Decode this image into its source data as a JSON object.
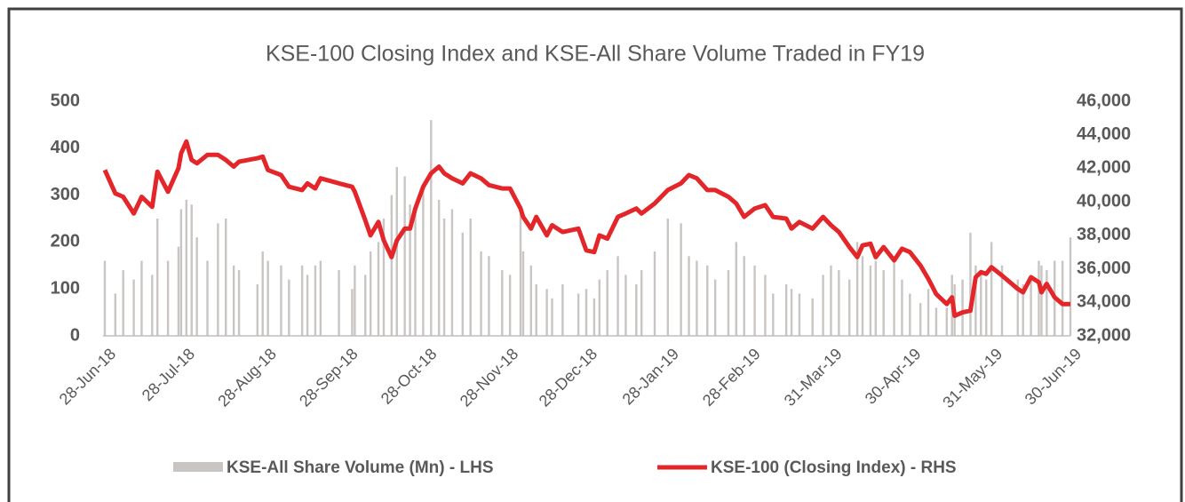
{
  "chart_data": {
    "type": "bar-line",
    "title": "KSE-100 Closing Index and KSE-All Share Volume Traded in FY19",
    "x": [
      "2018-06-28",
      "2018-07-02",
      "2018-07-05",
      "2018-07-09",
      "2018-07-12",
      "2018-07-16",
      "2018-07-18",
      "2018-07-22",
      "2018-07-26",
      "2018-07-27",
      "2018-07-29",
      "2018-07-31",
      "2018-08-02",
      "2018-08-06",
      "2018-08-10",
      "2018-08-13",
      "2018-08-16",
      "2018-08-18",
      "2018-08-25",
      "2018-08-27",
      "2018-08-29",
      "2018-09-03",
      "2018-09-06",
      "2018-09-11",
      "2018-09-13",
      "2018-09-16",
      "2018-09-18",
      "2018-09-25",
      "2018-09-30",
      "2018-10-01",
      "2018-10-05",
      "2018-10-07",
      "2018-10-10",
      "2018-10-12",
      "2018-10-15",
      "2018-10-17",
      "2018-10-20",
      "2018-10-22",
      "2018-10-24",
      "2018-10-27",
      "2018-10-30",
      "2018-11-02",
      "2018-11-04",
      "2018-11-07",
      "2018-11-11",
      "2018-11-14",
      "2018-11-18",
      "2018-11-21",
      "2018-11-26",
      "2018-11-29",
      "2018-12-03",
      "2018-12-04",
      "2018-12-07",
      "2018-12-09",
      "2018-12-13",
      "2018-12-15",
      "2018-12-19",
      "2018-12-25",
      "2018-12-28",
      "2018-12-31",
      "2019-01-02",
      "2019-01-05",
      "2019-01-09",
      "2019-01-12",
      "2019-01-16",
      "2019-01-18",
      "2019-01-23",
      "2019-01-28",
      "2019-02-02",
      "2019-02-05",
      "2019-02-08",
      "2019-02-12",
      "2019-02-15",
      "2019-02-20",
      "2019-02-23",
      "2019-02-26",
      "2019-03-02",
      "2019-03-06",
      "2019-03-09",
      "2019-03-14",
      "2019-03-16",
      "2019-03-19",
      "2019-03-24",
      "2019-03-28",
      "2019-03-31",
      "2019-04-03",
      "2019-04-07",
      "2019-04-10",
      "2019-04-12",
      "2019-04-15",
      "2019-04-17",
      "2019-04-20",
      "2019-04-24",
      "2019-04-27",
      "2019-04-30",
      "2019-05-04",
      "2019-05-07",
      "2019-05-10",
      "2019-05-14",
      "2019-05-16",
      "2019-05-17",
      "2019-05-20",
      "2019-05-23",
      "2019-05-25",
      "2019-05-27",
      "2019-05-29",
      "2019-05-31",
      "2019-06-04",
      "2019-06-10",
      "2019-06-12",
      "2019-06-15",
      "2019-06-18",
      "2019-06-19",
      "2019-06-21",
      "2019-06-24",
      "2019-06-27",
      "2019-06-30"
    ],
    "series": [
      {
        "name": "KSE-All Share Volume (Mn) - LHS",
        "type": "bar",
        "axis": "y",
        "color": "#c9c5c2",
        "values": [
          160,
          90,
          140,
          120,
          160,
          130,
          250,
          160,
          190,
          270,
          290,
          280,
          210,
          160,
          240,
          250,
          150,
          140,
          110,
          180,
          160,
          150,
          120,
          150,
          130,
          150,
          160,
          140,
          100,
          150,
          130,
          180,
          200,
          250,
          300,
          360,
          340,
          280,
          260,
          320,
          460,
          290,
          250,
          270,
          220,
          250,
          180,
          170,
          140,
          130,
          260,
          180,
          150,
          110,
          100,
          80,
          110,
          90,
          100,
          80,
          120,
          140,
          170,
          130,
          110,
          140,
          180,
          250,
          240,
          170,
          160,
          150,
          120,
          140,
          200,
          170,
          150,
          130,
          90,
          110,
          100,
          90,
          80,
          130,
          150,
          140,
          120,
          200,
          170,
          150,
          160,
          140,
          170,
          120,
          90,
          70,
          100,
          60,
          60,
          130,
          110,
          120,
          220,
          150,
          130,
          120,
          200,
          150,
          120,
          110,
          130,
          160,
          150,
          140,
          160,
          160,
          210
        ]
      },
      {
        "name": "KSE-100 (Closing Index) - RHS",
        "type": "line",
        "axis": "y2",
        "color": "#e3262a",
        "values": [
          41900,
          40500,
          40300,
          39300,
          40300,
          39700,
          41800,
          40600,
          42000,
          42900,
          43600,
          42500,
          42300,
          42800,
          42800,
          42500,
          42100,
          42400,
          42600,
          42700,
          41900,
          41600,
          40900,
          40700,
          41100,
          40800,
          41400,
          41100,
          40900,
          40600,
          38900,
          38000,
          38800,
          37700,
          36700,
          37700,
          38400,
          38400,
          39600,
          40900,
          41700,
          42100,
          41700,
          41400,
          41100,
          41700,
          41400,
          41000,
          40800,
          40800,
          39600,
          39100,
          38400,
          39100,
          38000,
          38600,
          38200,
          38400,
          37100,
          37000,
          38000,
          37800,
          39100,
          39300,
          39600,
          39300,
          39900,
          40700,
          41100,
          41600,
          41400,
          40700,
          40700,
          40300,
          39900,
          39100,
          39600,
          39800,
          39100,
          39000,
          38400,
          38800,
          38400,
          39100,
          38600,
          38200,
          37300,
          36700,
          37400,
          37500,
          36700,
          37300,
          36500,
          37200,
          37000,
          36200,
          35400,
          34500,
          33900,
          34300,
          33200,
          33400,
          33500,
          35500,
          35800,
          35700,
          36100,
          35600,
          34800,
          34600,
          35500,
          35200,
          34600,
          35100,
          34300,
          33900,
          33900
        ]
      }
    ],
    "xlim": [
      "2018-06-28",
      "2019-06-30"
    ],
    "xticks": [
      {
        "value": "2018-06-28",
        "label": "28-Jun-18"
      },
      {
        "value": "2018-07-28",
        "label": "28-Jul-18"
      },
      {
        "value": "2018-08-28",
        "label": "28-Aug-18"
      },
      {
        "value": "2018-09-28",
        "label": "28-Sep-18"
      },
      {
        "value": "2018-10-28",
        "label": "28-Oct-18"
      },
      {
        "value": "2018-11-28",
        "label": "28-Nov-18"
      },
      {
        "value": "2018-12-28",
        "label": "28-Dec-18"
      },
      {
        "value": "2019-01-28",
        "label": "28-Jan-19"
      },
      {
        "value": "2019-02-28",
        "label": "28-Feb-19"
      },
      {
        "value": "2019-03-31",
        "label": "31-Mar-19"
      },
      {
        "value": "2019-04-30",
        "label": "30-Apr-19"
      },
      {
        "value": "2019-05-31",
        "label": "31-May-19"
      },
      {
        "value": "2019-06-30",
        "label": "30-Jun-19"
      }
    ],
    "ylim": [
      0,
      500
    ],
    "yticks": [
      0,
      100,
      200,
      300,
      400,
      500
    ],
    "y2lim": [
      32000,
      46000
    ],
    "y2ticks": [
      {
        "value": 32000,
        "label": "32,000"
      },
      {
        "value": 34000,
        "label": "34,000"
      },
      {
        "value": 36000,
        "label": "36,000"
      },
      {
        "value": 38000,
        "label": "38,000"
      },
      {
        "value": 40000,
        "label": "40,000"
      },
      {
        "value": 42000,
        "label": "42,000"
      },
      {
        "value": 44000,
        "label": "44,000"
      },
      {
        "value": 46000,
        "label": "46,000"
      }
    ],
    "legend": "bottom"
  }
}
